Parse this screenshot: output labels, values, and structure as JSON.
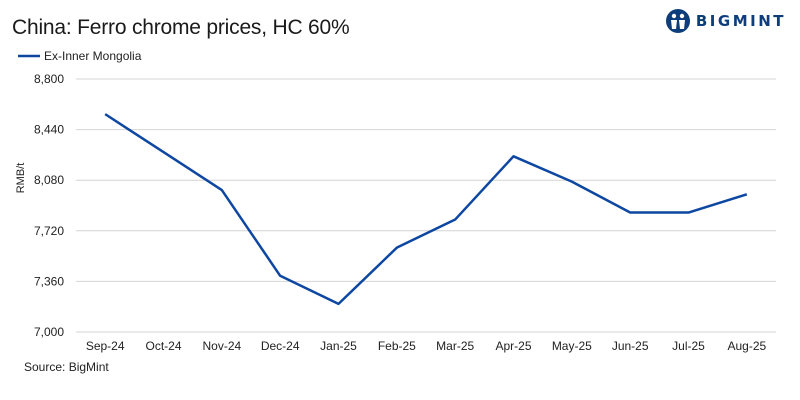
{
  "title": "China: Ferro chrome prices, HC 60%",
  "brand": {
    "name": "BIGMINT",
    "logo_icon": "bigmint-logo-icon",
    "color": "#0d3d7a"
  },
  "source": "Source: BigMint",
  "chart_data": {
    "type": "line",
    "categories": [
      "Sep-24",
      "Oct-24",
      "Nov-24",
      "Dec-24",
      "Jan-25",
      "Feb-25",
      "Mar-25",
      "Apr-25",
      "May-25",
      "Jun-25",
      "Jul-25",
      "Aug-25"
    ],
    "series": [
      {
        "name": "Ex-Inner Mongolia",
        "color": "#0d47a1",
        "values": [
          8550,
          8280,
          8010,
          7400,
          7200,
          7600,
          7800,
          8250,
          8070,
          7850,
          7850,
          7980
        ]
      }
    ],
    "ylabel": "RMB/t",
    "xlabel": "",
    "ylim": [
      7000,
      8800
    ],
    "yticks": [
      "7,000",
      "7,360",
      "7,720",
      "8,080",
      "8,440",
      "8,800"
    ],
    "ytick_values": [
      7000,
      7360,
      7720,
      8080,
      8440,
      8800
    ],
    "grid": true,
    "legend": "top-left",
    "grid_color": "#d4d4d4"
  }
}
